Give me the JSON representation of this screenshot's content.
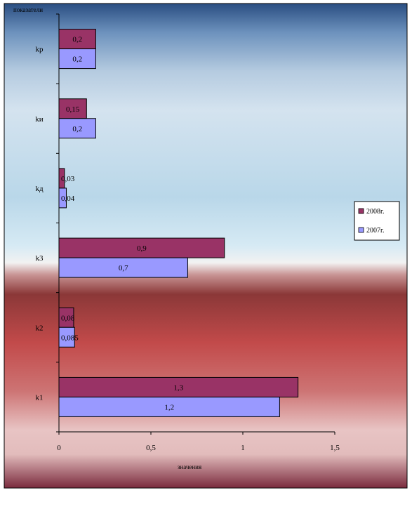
{
  "chart_data": {
    "type": "bar",
    "orientation": "horizontal",
    "title": "",
    "ylabel": "показатели",
    "xlabel": "значения",
    "categories": [
      "kp",
      "kи",
      "kд",
      "k3",
      "k2",
      "k1"
    ],
    "series": [
      {
        "name": "2008г.",
        "color": "#993366",
        "values": [
          0.2,
          0.15,
          0.03,
          0.9,
          0.08,
          1.3
        ],
        "labels": [
          "0,2",
          "0,15",
          "0,03",
          "0,9",
          "0,08",
          "1,3"
        ]
      },
      {
        "name": "2007г.",
        "color": "#9999ff",
        "values": [
          0.2,
          0.2,
          0.04,
          0.7,
          0.085,
          1.2
        ],
        "labels": [
          "0,2",
          "0,2",
          "0,04",
          "0,7",
          "0,085",
          "1,2"
        ]
      }
    ],
    "xlim": [
      0,
      1.5
    ],
    "x_ticks": [
      0,
      0.5,
      1,
      1.5
    ],
    "x_tick_labels": [
      "0",
      "0,5",
      "1",
      "1,5"
    ],
    "grid": false,
    "legend_position": "right"
  }
}
